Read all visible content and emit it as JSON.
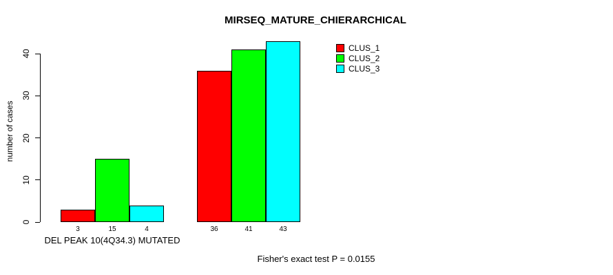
{
  "chart_data": {
    "type": "bar",
    "title": "MIRSEQ_MATURE_CHIERARCHICAL",
    "ylabel": "number of cases",
    "xlabel": "DEL PEAK 10(4Q34.3) MUTATED",
    "categories": [
      "DEL PEAK 10(4Q34.3) MUTATED",
      ""
    ],
    "series": [
      {
        "name": "CLUS_1",
        "color": "#ff0000",
        "values": [
          3,
          36
        ]
      },
      {
        "name": "CLUS_2",
        "color": "#00ff00",
        "values": [
          15,
          41
        ]
      },
      {
        "name": "CLUS_3",
        "color": "#00ffff",
        "values": [
          4,
          43
        ]
      }
    ],
    "yticks": [
      0,
      10,
      20,
      30,
      40
    ],
    "ylim": [
      0,
      43.5
    ],
    "grid": false,
    "legend_position": "top-right",
    "bar_border_color": "#000000",
    "annotation": "Fisher's exact test P = 0.0155"
  }
}
